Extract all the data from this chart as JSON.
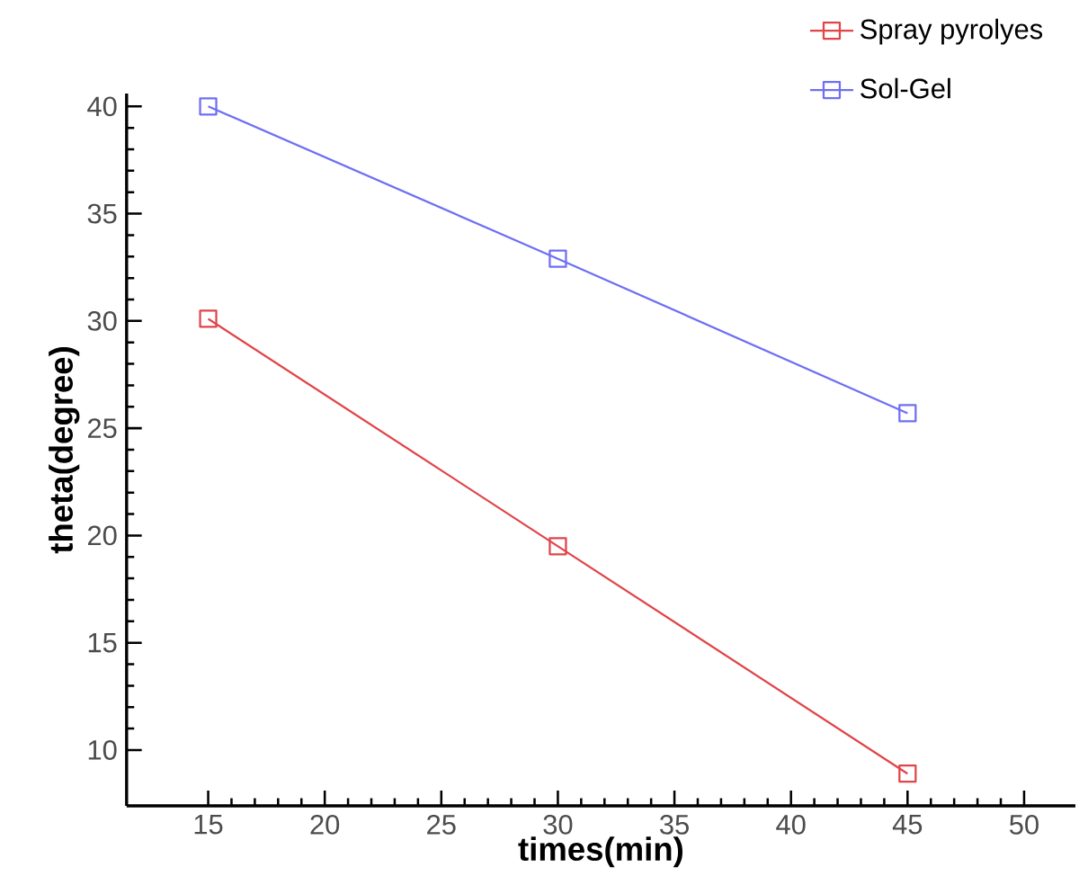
{
  "chart_data": {
    "type": "line",
    "xlabel": "times(min)",
    "ylabel": "theta(degree)",
    "x": [
      15,
      30,
      45
    ],
    "series": [
      {
        "name": "Spray pyrolyes",
        "color": "#e0454a",
        "values": [
          30.1,
          19.5,
          8.9
        ]
      },
      {
        "name": "Sol-Gel",
        "color": "#6f6ff5",
        "values": [
          40,
          32.9,
          25.7
        ]
      }
    ],
    "xlim": [
      11.5,
      52.2
    ],
    "ylim": [
      7.4,
      40.6
    ],
    "xticks": [
      15,
      20,
      25,
      30,
      35,
      40,
      45,
      50
    ],
    "yticks": [
      10,
      15,
      20,
      25,
      30,
      35,
      40
    ],
    "legend": "top right",
    "marker": "square",
    "line_style": "solid"
  }
}
